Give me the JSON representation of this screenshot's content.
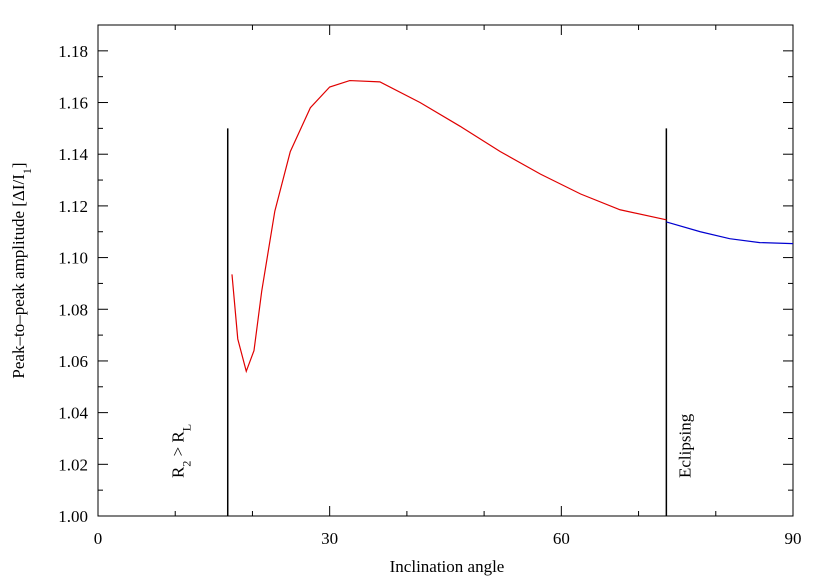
{
  "chart_data": {
    "type": "line",
    "xlabel": "Inclination angle",
    "ylabel": [
      "Peak–to–peak amplitude [ΔI/I",
      "1",
      "]"
    ],
    "xlim": [
      0,
      90
    ],
    "ylim": [
      1.0,
      1.19
    ],
    "xticks": [
      0,
      30,
      60,
      90
    ],
    "x_minor_ticks": [
      10,
      20,
      40,
      50,
      70,
      80
    ],
    "yticks": [
      {
        "value": 1.0,
        "label": "1.00"
      },
      {
        "value": 1.02,
        "label": "1.02"
      },
      {
        "value": 1.04,
        "label": "1.04"
      },
      {
        "value": 1.06,
        "label": "1.06"
      },
      {
        "value": 1.08,
        "label": "1.08"
      },
      {
        "value": 1.1,
        "label": "1.10"
      },
      {
        "value": 1.12,
        "label": "1.12"
      },
      {
        "value": 1.14,
        "label": "1.14"
      },
      {
        "value": 1.16,
        "label": "1.16"
      },
      {
        "value": 1.18,
        "label": "1.18"
      }
    ],
    "y_minor_ticks": [
      1.01,
      1.03,
      1.05,
      1.07,
      1.09,
      1.11,
      1.13,
      1.15,
      1.17
    ],
    "series": [
      {
        "color": "#e00000",
        "x": [
          17.35,
          18.1,
          19.2,
          20.2,
          21.2,
          22.9,
          24.9,
          27.5,
          30.0,
          32.6,
          36.5,
          41.7,
          46.9,
          52.1,
          57.3,
          62.5,
          67.6,
          73.6
        ],
        "values": [
          1.0935,
          1.0685,
          1.056,
          1.064,
          1.087,
          1.118,
          1.141,
          1.158,
          1.166,
          1.1685,
          1.168,
          1.16,
          1.1508,
          1.141,
          1.1323,
          1.1246,
          1.1185,
          1.1146
        ]
      },
      {
        "color": "#0000d0",
        "x": [
          73.6,
          78.0,
          81.8,
          85.7,
          90.0
        ],
        "values": [
          1.1138,
          1.11,
          1.1073,
          1.1058,
          1.1054
        ]
      }
    ],
    "vlines": [
      {
        "x": 16.8,
        "ymax": 1.15,
        "label": [
          "R",
          "2",
          " > R",
          "L"
        ]
      },
      {
        "x": 73.6,
        "ymax": 1.15,
        "label": [
          "Eclipsing"
        ]
      }
    ]
  }
}
